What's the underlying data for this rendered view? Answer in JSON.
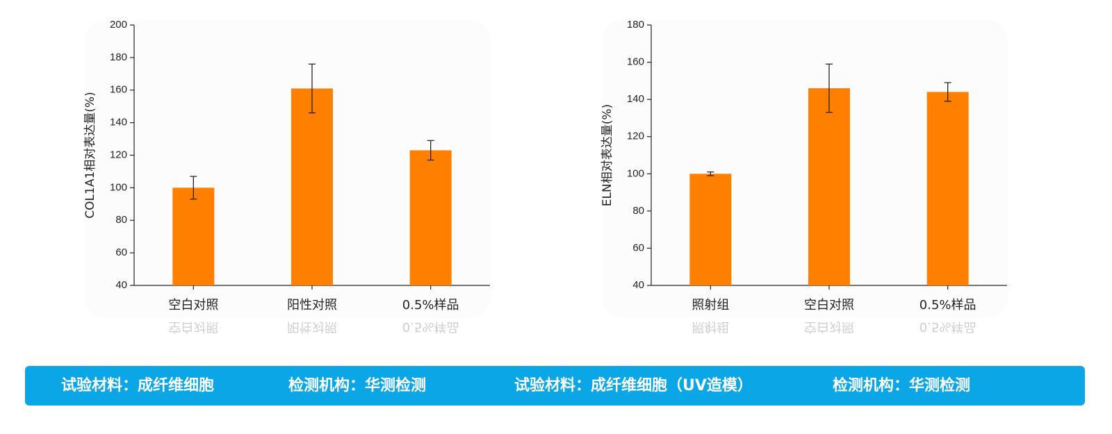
{
  "chart_data": [
    {
      "type": "bar",
      "y_label": "COL1A1相对表达量(%)",
      "categories": [
        "空白对照",
        "阳性对照",
        "0.5%样品"
      ],
      "values": [
        100,
        161,
        123
      ],
      "errors": [
        7,
        15,
        6
      ],
      "color": "#ff8000",
      "ylim": [
        40,
        200
      ],
      "yticks": [
        40,
        60,
        80,
        100,
        120,
        140,
        160,
        180,
        200
      ]
    },
    {
      "type": "bar",
      "y_label": "ELN相对表达量(%)",
      "categories": [
        "照射组",
        "空白对照",
        "0.5%样品"
      ],
      "values": [
        100,
        146,
        144
      ],
      "errors": [
        1,
        13,
        5
      ],
      "color": "#ff8000",
      "ylim": [
        40,
        180
      ],
      "yticks": [
        40,
        60,
        80,
        100,
        120,
        140,
        160,
        180
      ]
    }
  ],
  "banner": {
    "items": [
      "试验材料：成纤维细胞",
      "检测机构：华测检测",
      "试验材料：成纤维细胞（UV造模）",
      "检测机构：华测检测"
    ]
  }
}
